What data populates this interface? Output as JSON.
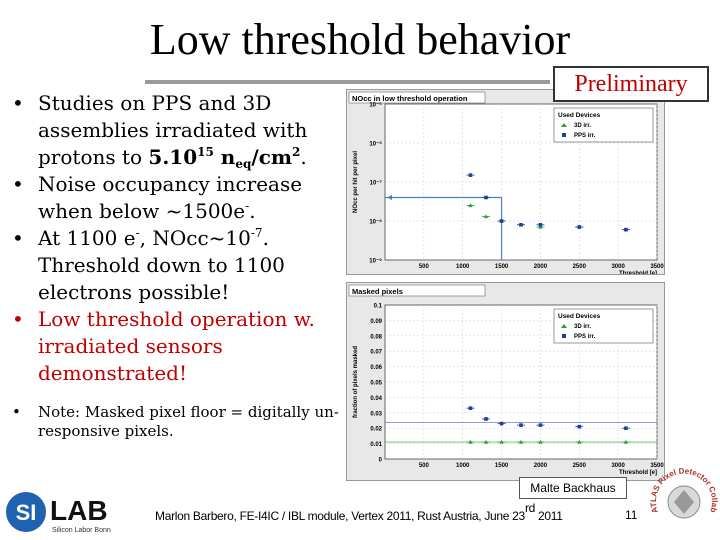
{
  "title": "Low threshold behavior",
  "preliminary": "Preliminary",
  "bullets": {
    "b1_pre": "Studies on PPS and 3D assemblies irradiated with protons to ",
    "b1_fluence": "5.10",
    "b1_exp": "15",
    "b1_unit": " n",
    "b1_unit_sub": "eq",
    "b1_unit_rest": "/cm",
    "b1_unit_exp": "2",
    "b1_end": ".",
    "b2_pre": "Noise occupancy increase when below ~1500e",
    "b2_sup": "-",
    "b2_end": ".",
    "b3_pre": "At 1100 e",
    "b3_sup": "-",
    "b3_mid": ", NOcc~10",
    "b3_exp": "-7",
    "b3_end": ". Threshold down to 1100 electrons possible!",
    "b4": "Low threshold operation  w. irradiated sensors demonstrated!",
    "b5": "Note: Masked pixel floor = digitally un-responsive pixels."
  },
  "bullet_glyph": "•",
  "author_tag": "Malte Backhaus",
  "footer": {
    "text": "Marlon Barbero, FE-I4IC / IBL module, Vertex 2011, Rust Austria, June 23",
    "sup": "rd",
    "year": " 2011"
  },
  "page_number": "11",
  "logos": {
    "silab_main_s": "SI",
    "silab_main_lab": "LAB",
    "silab_sub": "Silicon Labor Bonn",
    "atlas_text": "ATLAS Pixel Detector Collaboration"
  },
  "colors": {
    "red": "#c00000",
    "series_3d": "#2ca02c",
    "series_pps": "#1f3fa0",
    "guide": "#4a7fc0"
  },
  "chart_data": [
    {
      "type": "scatter",
      "title": "NOcc in low threshold operation",
      "xlabel": "Threshold [e]",
      "ylabel": "NOcc per hit per pixel",
      "yscale": "log",
      "xlim": [
        0,
        3500
      ],
      "ylim": [
        1e-09,
        1e-05
      ],
      "x_ticks": [
        "500",
        "1000",
        "1500",
        "2000",
        "2500",
        "3000",
        "3500"
      ],
      "y_ticks": [
        "10⁻⁹",
        "10⁻⁸",
        "10⁻⁷",
        "10⁻⁶",
        "10⁻⁵"
      ],
      "legend": {
        "title": "Used Devices",
        "position": "top-right"
      },
      "series": [
        {
          "name": "3D irr.",
          "marker": "triangle",
          "x": [
            1100,
            1300,
            1500,
            1750,
            2000,
            2500,
            3100
          ],
          "y": [
            2.5e-08,
            1.3e-08,
            1e-08,
            8e-09,
            7e-09,
            7e-09,
            6e-09
          ]
        },
        {
          "name": "PPS irr.",
          "marker": "square",
          "x": [
            1100,
            1300,
            1500,
            1750,
            2000,
            2500,
            3100
          ],
          "y": [
            1.5e-07,
            4e-08,
            1e-08,
            8e-09,
            8e-09,
            7e-09,
            6e-09
          ]
        }
      ],
      "guide": {
        "x": 1500,
        "y": 4e-08
      }
    },
    {
      "type": "scatter",
      "title": "Masked pixels",
      "xlabel": "Threshold [e]",
      "ylabel": "fraction of pixels masked",
      "xlim": [
        0,
        3500
      ],
      "ylim": [
        0,
        0.1
      ],
      "x_ticks": [
        "500",
        "1000",
        "1500",
        "2000",
        "2500",
        "3000",
        "3500"
      ],
      "y_ticks": [
        "0",
        "0.01",
        "0.02",
        "0.03",
        "0.04",
        "0.05",
        "0.06",
        "0.07",
        "0.08",
        "0.09",
        "0.1"
      ],
      "legend": {
        "title": "Used Devices",
        "position": "top-right"
      },
      "series": [
        {
          "name": "3D irr.",
          "marker": "triangle",
          "x": [
            1100,
            1300,
            1500,
            1750,
            2000,
            2500,
            3100
          ],
          "y": [
            0.011,
            0.011,
            0.011,
            0.011,
            0.011,
            0.011,
            0.011
          ]
        },
        {
          "name": "PPS irr.",
          "marker": "square",
          "x": [
            1100,
            1300,
            1500,
            1750,
            2000,
            2500,
            3100
          ],
          "y": [
            0.033,
            0.026,
            0.023,
            0.022,
            0.022,
            0.021,
            0.02
          ]
        }
      ]
    }
  ]
}
